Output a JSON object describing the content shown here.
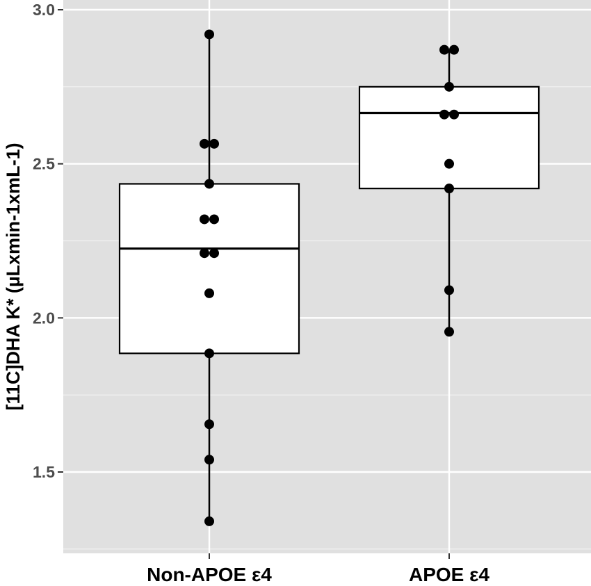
{
  "chart_data": {
    "type": "box",
    "title": "",
    "xlabel": "",
    "ylabel": "[11C]DHA K* (µLxmin-1xmL-1)",
    "ylim": [
      1.25,
      3.01
    ],
    "y_ticks": [
      1.5,
      2.0,
      2.5,
      3.0
    ],
    "y_tick_labels": [
      "1.5",
      "2.0",
      "2.5",
      "3.0"
    ],
    "grid": true,
    "legend": "none",
    "categories": [
      "Non-APOE ε4",
      "APOE ε4"
    ],
    "boxes": [
      {
        "category": "Non-APOE ε4",
        "whisker_low": 1.34,
        "q1": 1.885,
        "median": 2.225,
        "q3": 2.435,
        "whisker_high": 2.92
      },
      {
        "category": "APOE ε4",
        "whisker_low": 1.955,
        "q1": 2.42,
        "median": 2.665,
        "q3": 2.75,
        "whisker_high": 2.87
      }
    ],
    "points": [
      {
        "category": "Non-APOE ε4",
        "values": [
          2.92,
          2.565,
          2.565,
          2.435,
          2.32,
          2.32,
          2.21,
          2.21,
          2.08,
          1.885,
          1.655,
          1.54,
          1.34
        ],
        "offsets": [
          0,
          -1,
          1,
          0,
          -1,
          1,
          -1,
          1,
          0,
          0,
          0,
          0,
          0
        ]
      },
      {
        "category": "APOE ε4",
        "values": [
          2.87,
          2.87,
          2.75,
          2.66,
          2.66,
          2.5,
          2.42,
          2.09,
          1.955
        ],
        "offsets": [
          -1,
          1,
          0,
          -1,
          1,
          0,
          0,
          0,
          0
        ]
      }
    ],
    "colors": {
      "panel": "#e0e0e0",
      "grid": "#ffffff",
      "box_fill": "#ffffff",
      "box_line": "#000000",
      "point": "#000000",
      "tick_text": "#4d4d4d"
    }
  }
}
